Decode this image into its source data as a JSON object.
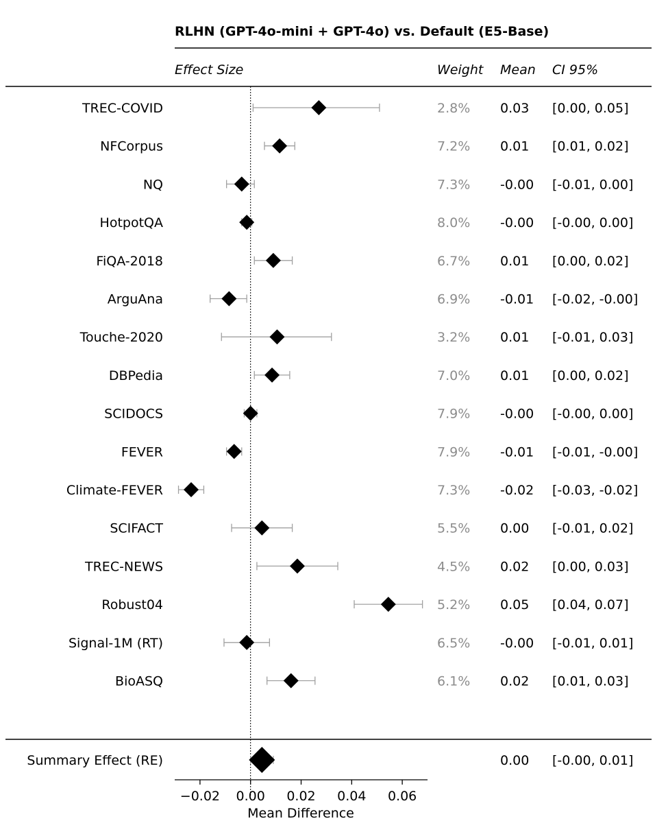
{
  "chart_data": {
    "type": "forest",
    "title": "RLHN (GPT-4o-mini + GPT-4o) vs. Default (E5-Base)",
    "columns": {
      "effect": "Effect Size",
      "weight": "Weight",
      "mean": "Mean",
      "ci": "CI 95%"
    },
    "xlabel": "Mean Difference",
    "xlim": [
      -0.03,
      0.07
    ],
    "xticks": [
      "−0.02",
      "0.00",
      "0.02",
      "0.04",
      "0.06"
    ],
    "xtick_values": [
      -0.02,
      0.0,
      0.02,
      0.04,
      0.06
    ],
    "reference_line": 0.0,
    "rows": [
      {
        "label": "TREC-COVID",
        "estimate": 0.027,
        "ci_low": 0.001,
        "ci_high": 0.051,
        "weight": "2.8%",
        "mean": "0.03",
        "ci": "[0.00, 0.05]"
      },
      {
        "label": "NFCorpus",
        "estimate": 0.0115,
        "ci_low": 0.0055,
        "ci_high": 0.0175,
        "weight": "7.2%",
        "mean": "0.01",
        "ci": "[0.01, 0.02]"
      },
      {
        "label": "NQ",
        "estimate": -0.0035,
        "ci_low": -0.0095,
        "ci_high": 0.0015,
        "weight": "7.3%",
        "mean": "-0.00",
        "ci": "[-0.01, 0.00]"
      },
      {
        "label": "HotpotQA",
        "estimate": -0.0015,
        "ci_low": -0.0035,
        "ci_high": 0.0005,
        "weight": "8.0%",
        "mean": "-0.00",
        "ci": "[-0.00, 0.00]"
      },
      {
        "label": "FiQA-2018",
        "estimate": 0.009,
        "ci_low": 0.0015,
        "ci_high": 0.0165,
        "weight": "6.7%",
        "mean": "0.01",
        "ci": "[0.00, 0.02]"
      },
      {
        "label": "ArguAna",
        "estimate": -0.0085,
        "ci_low": -0.016,
        "ci_high": -0.0015,
        "weight": "6.9%",
        "mean": "-0.01",
        "ci": "[-0.02, -0.00]"
      },
      {
        "label": "Touche-2020",
        "estimate": 0.0105,
        "ci_low": -0.0115,
        "ci_high": 0.032,
        "weight": "3.2%",
        "mean": "0.01",
        "ci": "[-0.01, 0.03]"
      },
      {
        "label": "DBPedia",
        "estimate": 0.0085,
        "ci_low": 0.0015,
        "ci_high": 0.0155,
        "weight": "7.0%",
        "mean": "0.01",
        "ci": "[0.00, 0.02]"
      },
      {
        "label": "SCIDOCS",
        "estimate": 0.0,
        "ci_low": -0.0025,
        "ci_high": 0.0025,
        "weight": "7.9%",
        "mean": "-0.00",
        "ci": "[-0.00, 0.00]"
      },
      {
        "label": "FEVER",
        "estimate": -0.0065,
        "ci_low": -0.0095,
        "ci_high": -0.0035,
        "weight": "7.9%",
        "mean": "-0.01",
        "ci": "[-0.01, -0.00]"
      },
      {
        "label": "Climate-FEVER",
        "estimate": -0.0235,
        "ci_low": -0.0285,
        "ci_high": -0.0185,
        "weight": "7.3%",
        "mean": "-0.02",
        "ci": "[-0.03, -0.02]"
      },
      {
        "label": "SCIFACT",
        "estimate": 0.0045,
        "ci_low": -0.0075,
        "ci_high": 0.0165,
        "weight": "5.5%",
        "mean": "0.00",
        "ci": "[-0.01, 0.02]"
      },
      {
        "label": "TREC-NEWS",
        "estimate": 0.0185,
        "ci_low": 0.0025,
        "ci_high": 0.0345,
        "weight": "4.5%",
        "mean": "0.02",
        "ci": "[0.00, 0.03]"
      },
      {
        "label": "Robust04",
        "estimate": 0.0545,
        "ci_low": 0.041,
        "ci_high": 0.068,
        "weight": "5.2%",
        "mean": "0.05",
        "ci": "[0.04, 0.07]"
      },
      {
        "label": "Signal-1M (RT)",
        "estimate": -0.0015,
        "ci_low": -0.0105,
        "ci_high": 0.0075,
        "weight": "6.5%",
        "mean": "-0.00",
        "ci": "[-0.01, 0.01]"
      },
      {
        "label": "BioASQ",
        "estimate": 0.016,
        "ci_low": 0.0065,
        "ci_high": 0.0255,
        "weight": "6.1%",
        "mean": "0.02",
        "ci": "[0.01, 0.03]"
      }
    ],
    "summary": {
      "label": "Summary Effect (RE)",
      "estimate": 0.0045,
      "ci_low": 0.0,
      "ci_high": 0.009,
      "mean": "0.00",
      "ci": "[-0.00, 0.01]"
    }
  },
  "colors": {
    "marker": "#000000",
    "ci_line": "#a0a0a0",
    "weight_text": "#8c8c8c"
  }
}
